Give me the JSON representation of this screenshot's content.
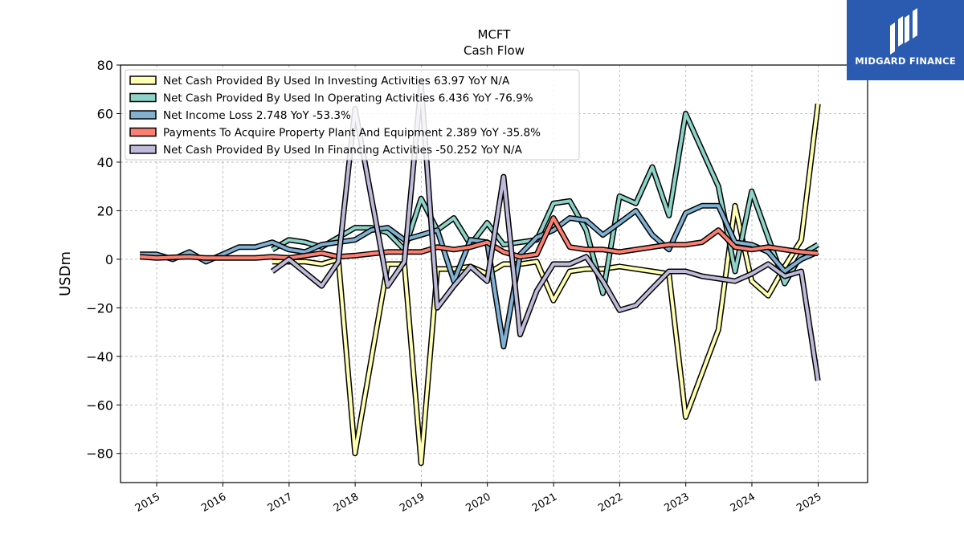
{
  "brand": {
    "name": "MIDGARD FINANCE",
    "bg_color": "#2a5bb0",
    "icon": "midgard-logo-icon"
  },
  "chart_data": {
    "type": "line",
    "title": "MCFT",
    "subtitle": "Cash Flow",
    "xlabel": "",
    "ylabel": "USDm",
    "xlim": [
      "2014-06-15",
      "2025-10-01"
    ],
    "ylim": [
      -92,
      80
    ],
    "yticks": [
      -80,
      -60,
      -40,
      -20,
      0,
      20,
      40,
      60,
      80
    ],
    "ytick_labels": [
      "−80",
      "−60",
      "−40",
      "−20",
      "0",
      "20",
      "40",
      "60",
      "80"
    ],
    "xticks": [
      "2015-01-01",
      "2016-01-01",
      "2017-01-01",
      "2018-01-01",
      "2019-01-01",
      "2020-01-01",
      "2021-01-01",
      "2022-01-01",
      "2023-01-01",
      "2024-01-01",
      "2025-01-01"
    ],
    "xtick_labels": [
      "2015",
      "2016",
      "2017",
      "2018",
      "2019",
      "2020",
      "2021",
      "2022",
      "2023",
      "2024",
      "2025"
    ],
    "grid": true,
    "legend_position": "top-left",
    "series": [
      {
        "name": "Net Cash Provided By Used In Investing Activities",
        "legend_label": "Net Cash Provided By Used In Investing Activities  63.97 YoY N/A",
        "color": "#ffffb3",
        "points": [
          [
            "2016-09-30",
            -1
          ],
          [
            "2017-03-31",
            -1
          ],
          [
            "2017-06-30",
            -2
          ],
          [
            "2017-09-30",
            0
          ],
          [
            "2017-12-31",
            -80
          ],
          [
            "2018-06-30",
            -2
          ],
          [
            "2018-09-30",
            -2
          ],
          [
            "2018-12-31",
            -84
          ],
          [
            "2019-03-31",
            -4
          ],
          [
            "2019-06-30",
            -4
          ],
          [
            "2019-09-30",
            -3
          ],
          [
            "2019-12-31",
            -6
          ],
          [
            "2020-03-31",
            -2
          ],
          [
            "2020-06-30",
            -2
          ],
          [
            "2020-09-30",
            -1
          ],
          [
            "2020-12-31",
            -17
          ],
          [
            "2021-03-31",
            -5
          ],
          [
            "2021-06-30",
            -4
          ],
          [
            "2021-09-30",
            -4
          ],
          [
            "2021-12-31",
            -3
          ],
          [
            "2022-06-30",
            -5
          ],
          [
            "2022-09-30",
            -6
          ],
          [
            "2022-12-31",
            -65
          ],
          [
            "2023-06-30",
            -29
          ],
          [
            "2023-09-30",
            22
          ],
          [
            "2023-12-31",
            -9
          ],
          [
            "2024-03-31",
            -15
          ],
          [
            "2024-06-30",
            -3
          ],
          [
            "2024-09-30",
            8
          ],
          [
            "2024-12-31",
            64
          ]
        ]
      },
      {
        "name": "Net Cash Provided By Used In Operating Activities",
        "legend_label": "Net Cash Provided By Used In Operating Activities  6.436 YoY -76.9%",
        "color": "#8dd3c7",
        "points": [
          [
            "2016-09-30",
            4
          ],
          [
            "2016-12-31",
            8
          ],
          [
            "2017-03-31",
            7
          ],
          [
            "2017-06-30",
            5
          ],
          [
            "2017-09-30",
            9
          ],
          [
            "2017-12-31",
            13
          ],
          [
            "2018-03-31",
            13
          ],
          [
            "2018-06-30",
            11
          ],
          [
            "2018-09-30",
            4
          ],
          [
            "2018-12-31",
            25
          ],
          [
            "2019-03-31",
            12
          ],
          [
            "2019-06-30",
            17
          ],
          [
            "2019-09-30",
            6
          ],
          [
            "2019-12-31",
            15
          ],
          [
            "2020-03-31",
            6
          ],
          [
            "2020-06-30",
            7
          ],
          [
            "2020-09-30",
            8
          ],
          [
            "2020-12-31",
            23
          ],
          [
            "2021-03-31",
            24
          ],
          [
            "2021-06-30",
            12
          ],
          [
            "2021-09-30",
            -14
          ],
          [
            "2021-12-31",
            26
          ],
          [
            "2022-03-31",
            23
          ],
          [
            "2022-06-30",
            38
          ],
          [
            "2022-09-30",
            18
          ],
          [
            "2022-12-31",
            60
          ],
          [
            "2023-06-30",
            30
          ],
          [
            "2023-09-30",
            -5
          ],
          [
            "2023-12-31",
            28
          ],
          [
            "2024-06-30",
            -10
          ],
          [
            "2024-09-30",
            2
          ],
          [
            "2024-12-31",
            6
          ]
        ]
      },
      {
        "name": "Net Income Loss",
        "legend_label": "Net Income Loss  2.748 YoY -53.3%",
        "color": "#80b1d3",
        "points": [
          [
            "2014-09-30",
            2
          ],
          [
            "2014-12-31",
            2
          ],
          [
            "2015-03-31",
            0
          ],
          [
            "2015-06-30",
            3
          ],
          [
            "2015-09-30",
            -1
          ],
          [
            "2015-12-31",
            2
          ],
          [
            "2016-03-31",
            5
          ],
          [
            "2016-06-30",
            5
          ],
          [
            "2016-09-30",
            7
          ],
          [
            "2016-12-31",
            4
          ],
          [
            "2017-03-31",
            3
          ],
          [
            "2017-06-30",
            6
          ],
          [
            "2017-09-30",
            7
          ],
          [
            "2017-12-31",
            8
          ],
          [
            "2018-03-31",
            12
          ],
          [
            "2018-06-30",
            13
          ],
          [
            "2018-09-30",
            8
          ],
          [
            "2018-12-31",
            10
          ],
          [
            "2019-03-31",
            12
          ],
          [
            "2019-06-30",
            -9
          ],
          [
            "2019-09-30",
            8
          ],
          [
            "2019-12-31",
            7
          ],
          [
            "2020-03-31",
            -36
          ],
          [
            "2020-06-30",
            2
          ],
          [
            "2020-09-30",
            9
          ],
          [
            "2020-12-31",
            12
          ],
          [
            "2021-03-31",
            17
          ],
          [
            "2021-06-30",
            16
          ],
          [
            "2021-09-30",
            10
          ],
          [
            "2021-12-31",
            15
          ],
          [
            "2022-03-31",
            20
          ],
          [
            "2022-06-30",
            10
          ],
          [
            "2022-09-30",
            4
          ],
          [
            "2022-12-31",
            19
          ],
          [
            "2023-03-31",
            22
          ],
          [
            "2023-06-30",
            22
          ],
          [
            "2023-09-30",
            7
          ],
          [
            "2023-12-31",
            6
          ],
          [
            "2024-03-31",
            3
          ],
          [
            "2024-06-30",
            -5
          ],
          [
            "2024-09-30",
            0
          ],
          [
            "2024-12-31",
            3
          ]
        ]
      },
      {
        "name": "Payments To Acquire Property Plant And Equipment",
        "legend_label": "Payments To Acquire Property Plant And Equipment  2.389 YoY -35.8%",
        "color": "#fb8072",
        "points": [
          [
            "2014-09-30",
            1
          ],
          [
            "2014-12-31",
            0.5
          ],
          [
            "2015-06-30",
            1
          ],
          [
            "2015-09-30",
            0.5
          ],
          [
            "2016-06-30",
            0.5
          ],
          [
            "2016-09-30",
            1
          ],
          [
            "2016-12-31",
            0.5
          ],
          [
            "2017-06-30",
            2.5
          ],
          [
            "2017-09-30",
            1
          ],
          [
            "2017-12-31",
            1.5
          ],
          [
            "2018-06-30",
            3
          ],
          [
            "2018-09-30",
            3
          ],
          [
            "2018-12-31",
            3
          ],
          [
            "2019-03-31",
            5
          ],
          [
            "2019-06-30",
            4
          ],
          [
            "2019-09-30",
            5
          ],
          [
            "2019-12-31",
            7
          ],
          [
            "2020-03-31",
            3
          ],
          [
            "2020-06-30",
            1
          ],
          [
            "2020-09-30",
            2
          ],
          [
            "2020-12-31",
            17
          ],
          [
            "2021-03-31",
            5
          ],
          [
            "2021-06-30",
            4
          ],
          [
            "2021-09-30",
            4
          ],
          [
            "2021-12-31",
            3
          ],
          [
            "2022-03-31",
            4
          ],
          [
            "2022-06-30",
            5
          ],
          [
            "2022-09-30",
            6
          ],
          [
            "2022-12-31",
            6
          ],
          [
            "2023-03-31",
            7
          ],
          [
            "2023-06-30",
            12
          ],
          [
            "2023-09-30",
            5
          ],
          [
            "2023-12-31",
            4
          ],
          [
            "2024-03-31",
            5
          ],
          [
            "2024-06-30",
            4
          ],
          [
            "2024-09-30",
            3
          ],
          [
            "2024-12-31",
            2.4
          ]
        ]
      },
      {
        "name": "Net Cash Provided By Used In Financing Activities",
        "legend_label": "Net Cash Provided By Used In Financing Activities  -50.252 YoY N/A",
        "color": "#bebada",
        "points": [
          [
            "2016-09-30",
            -5
          ],
          [
            "2016-12-31",
            0
          ],
          [
            "2017-06-30",
            -11
          ],
          [
            "2017-09-30",
            -1
          ],
          [
            "2017-12-31",
            62
          ],
          [
            "2018-06-30",
            -11
          ],
          [
            "2018-09-30",
            -1
          ],
          [
            "2018-12-31",
            72
          ],
          [
            "2019-03-31",
            -20
          ],
          [
            "2019-06-30",
            -11
          ],
          [
            "2019-09-30",
            -3
          ],
          [
            "2019-12-31",
            -9
          ],
          [
            "2020-03-31",
            34
          ],
          [
            "2020-06-30",
            -31
          ],
          [
            "2020-09-30",
            -13
          ],
          [
            "2020-12-31",
            -2
          ],
          [
            "2021-03-31",
            -2
          ],
          [
            "2021-06-30",
            1
          ],
          [
            "2021-09-30",
            -9
          ],
          [
            "2021-12-31",
            -21
          ],
          [
            "2022-03-31",
            -19
          ],
          [
            "2022-06-30",
            -12
          ],
          [
            "2022-09-30",
            -5
          ],
          [
            "2022-12-31",
            -5
          ],
          [
            "2023-03-31",
            -7
          ],
          [
            "2023-06-30",
            -8
          ],
          [
            "2023-09-30",
            -9
          ],
          [
            "2023-12-31",
            -6
          ],
          [
            "2024-03-31",
            -2
          ],
          [
            "2024-06-30",
            -7
          ],
          [
            "2024-09-30",
            -5
          ],
          [
            "2024-12-31",
            -50
          ]
        ]
      }
    ]
  }
}
